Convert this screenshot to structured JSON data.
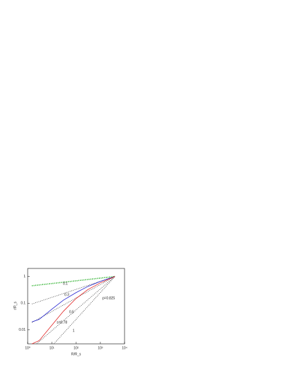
{
  "chart_data": {
    "type": "line",
    "xlabel": "R/R_s",
    "ylabel": "r/R_s",
    "xlog": true,
    "ylog": true,
    "xlim": [
      1,
      10000
    ],
    "ylim": [
      0.003,
      2
    ],
    "xticks": [
      {
        "value": 1,
        "label": "10⁰"
      },
      {
        "value": 10,
        "label": "10¹"
      },
      {
        "value": 100,
        "label": "10²"
      },
      {
        "value": 1000,
        "label": "10³"
      },
      {
        "value": 10000,
        "label": "10⁴"
      }
    ],
    "yticks": [
      0.01,
      0.1,
      1
    ],
    "series": [
      {
        "name": "0.1",
        "color": "#00a000",
        "style": "dotted",
        "x": [
          1.5,
          4000
        ],
        "values": [
          0.45,
          1
        ]
      },
      {
        "name": "0.3",
        "color": "#333333",
        "style": "dotted",
        "x": [
          1.5,
          4000
        ],
        "values": [
          0.094,
          1
        ]
      },
      {
        "name": "0.5",
        "color": "#333333",
        "style": "dotted",
        "x": [
          1.5,
          4000
        ],
        "values": [
          0.019,
          1
        ]
      },
      {
        "name": "s=0.78",
        "color": "#333333",
        "style": "dotted",
        "x": [
          2.3,
          4000
        ],
        "values": [
          0.003,
          1
        ]
      },
      {
        "name": "1",
        "color": "#333333",
        "style": "dotted",
        "x": [
          12,
          4000
        ],
        "values": [
          0.003,
          1
        ]
      },
      {
        "name": "blue",
        "color": "#2020d0",
        "style": "solid",
        "x": [
          1.5,
          3,
          10,
          30,
          100,
          300,
          1000,
          4000
        ],
        "values": [
          0.02,
          0.025,
          0.06,
          0.13,
          0.25,
          0.42,
          0.65,
          1
        ]
      },
      {
        "name": "red",
        "color": "#e02020",
        "style": "solid",
        "x": [
          1.5,
          3,
          10,
          30,
          100,
          300,
          1000,
          4000
        ],
        "values": [
          0.003,
          0.004,
          0.015,
          0.05,
          0.15,
          0.32,
          0.58,
          1
        ]
      }
    ],
    "annotations": [
      "0.1",
      "0.3",
      "0.5",
      "s=0.78",
      "1",
      "p=0.825"
    ]
  }
}
